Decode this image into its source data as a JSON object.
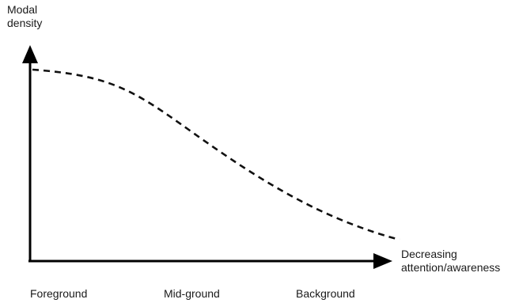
{
  "diagram": {
    "y_axis_label_line1": "Modal",
    "y_axis_label_line2": "density",
    "x_axis_label_line1": "Decreasing",
    "x_axis_label_line2": "attention/awareness",
    "categories": [
      "Foreground",
      "Mid-ground",
      "Background"
    ],
    "curve": {
      "style": "dashed",
      "shape": "decreasing S-curve",
      "color": "#111111"
    },
    "axis_color": "#000000"
  }
}
